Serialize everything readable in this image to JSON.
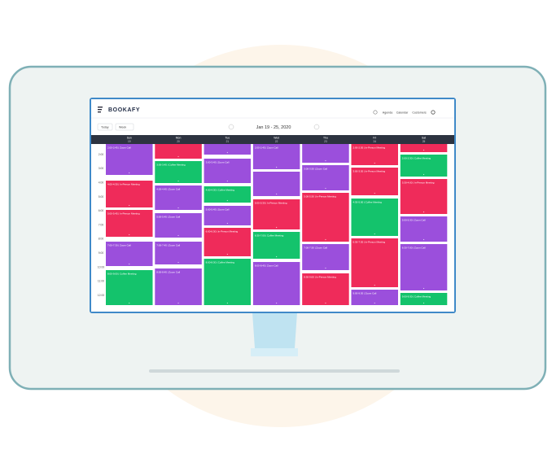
{
  "header": {
    "logo": "BOOKAFY",
    "nav": [
      "Agenda",
      "Calendar",
      "Customers"
    ]
  },
  "toolbar": {
    "buttons": [
      "Today",
      "Week"
    ],
    "date_range": "Jan 19 - 25, 2020"
  },
  "calendar": {
    "times": [
      "2:00",
      "3:00",
      "4:00",
      "5:00",
      "6:00",
      "7:00",
      "8:00",
      "9:00",
      "10:00",
      "11:00",
      "12:00"
    ],
    "days": [
      {
        "name": "Sun",
        "date": "19",
        "events": [
          {
            "label": "2:00-2:45 | Zoom Call",
            "color": "#9b4fdc"
          },
          {
            "label": "4:00-4:30 | In-Person Meeting",
            "color": "#ef2b5a"
          },
          {
            "label": "5:00-5:45 | In-Person Meeting",
            "color": "#ef2b5a"
          },
          {
            "label": "7:00-7:30 | Zoom Call",
            "color": "#9b4fdc"
          },
          {
            "label": "8:00-9:00 | Coffee Meeting",
            "color": "#14c36c"
          }
        ]
      },
      {
        "name": "Mon",
        "date": "20",
        "events": [
          {
            "color": "#ef2b5a"
          },
          {
            "label": "3:00-3:45 | Coffee Meeting",
            "color": "#14c36c"
          },
          {
            "label": "4:00-4:45 | Zoom Call",
            "color": "#9b4fdc"
          },
          {
            "label": "5:00-5:45 | Zoom Call",
            "color": "#9b4fdc"
          },
          {
            "label": "7:00-7:45 | Zoom Call",
            "color": "#9b4fdc"
          },
          {
            "label": "8:00-8:45 | Zoom Call",
            "color": "#9b4fdc"
          }
        ]
      },
      {
        "name": "Tue",
        "date": "21",
        "events": [
          {
            "color": "#9b4fdc"
          },
          {
            "label": "3:00-3:45 | Zoom Call",
            "color": "#9b4fdc"
          },
          {
            "label": "4:00-4:30 | Coffee Meeting",
            "color": "#14c36c"
          },
          {
            "label": "5:00-5:45 | Zoom Call",
            "color": "#9b4fdc"
          },
          {
            "label": "6:00-6:30 | In-Person Meeting",
            "color": "#ef2b5a"
          },
          {
            "label": "8:00-8:30 | Coffee Meeting",
            "color": "#14c36c"
          }
        ]
      },
      {
        "name": "Wed",
        "date": "22",
        "events": [
          {
            "label": "2:00-2:45 | Zoom Call",
            "color": "#9b4fdc"
          },
          {
            "color": "#9b4fdc"
          },
          {
            "label": "5:00-5:30 | In-Person Meeting",
            "color": "#ef2b5a"
          },
          {
            "label": "6:30-7:00 | Coffee Meeting",
            "color": "#14c36c"
          },
          {
            "label": "8:00-8:45 | Zoom Call",
            "color": "#9b4fdc"
          }
        ]
      },
      {
        "name": "Thu",
        "date": "23",
        "events": [
          {
            "color": "#9b4fdc"
          },
          {
            "label": "3:00-3:30 | Zoom Call",
            "color": "#9b4fdc"
          },
          {
            "label": "5:00-5:30 | In-Person Meeting",
            "color": "#ef2b5a"
          },
          {
            "label": "7:00-7:30 | Zoom Call",
            "color": "#9b4fdc"
          },
          {
            "label": "8:30-9:00 | In-Person Meeting",
            "color": "#ef2b5a"
          }
        ]
      },
      {
        "name": "Fri",
        "date": "24",
        "events": [
          {
            "label": "2:00-2:30 | In-Person Meeting",
            "color": "#ef2b5a"
          },
          {
            "label": "3:00-3:30 | In-Person Meeting",
            "color": "#ef2b5a"
          },
          {
            "label": "4:30-5:00 | Coffee Meeting",
            "color": "#14c36c"
          },
          {
            "label": "6:30-7:30 | In-Person Meeting",
            "color": "#ef2b5a"
          },
          {
            "label": "9:00-9:30 | Zoom Call",
            "color": "#9b4fdc"
          }
        ]
      },
      {
        "name": "Sat",
        "date": "25",
        "events": [
          {
            "color": "#ef2b5a"
          },
          {
            "label": "2:00-2:30 | Coffee Meeting",
            "color": "#14c36c"
          },
          {
            "label": "3:30-4:00 | In-Person Meeting",
            "color": "#ef2b5a"
          },
          {
            "label": "5:00-5:30 | Zoom Call",
            "color": "#9b4fdc"
          },
          {
            "label": "6:30-7:00 | Zoom Call",
            "color": "#9b4fdc"
          },
          {
            "label": "9:00-9:30 | Coffee Meeting",
            "color": "#14c36c"
          }
        ]
      }
    ]
  }
}
